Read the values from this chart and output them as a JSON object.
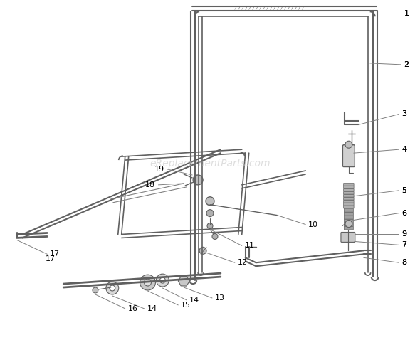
{
  "background_color": "#ffffff",
  "line_color": "#606060",
  "label_color": "#000000",
  "leader_color": "#808080",
  "watermark": "eReplacementParts.com",
  "watermark_color": "#c8c8c8",
  "figsize": [
    5.9,
    4.78
  ],
  "dpi": 100,
  "part_colors": {
    "main": "#909090",
    "light": "#b8b8b8",
    "dark": "#686868"
  }
}
